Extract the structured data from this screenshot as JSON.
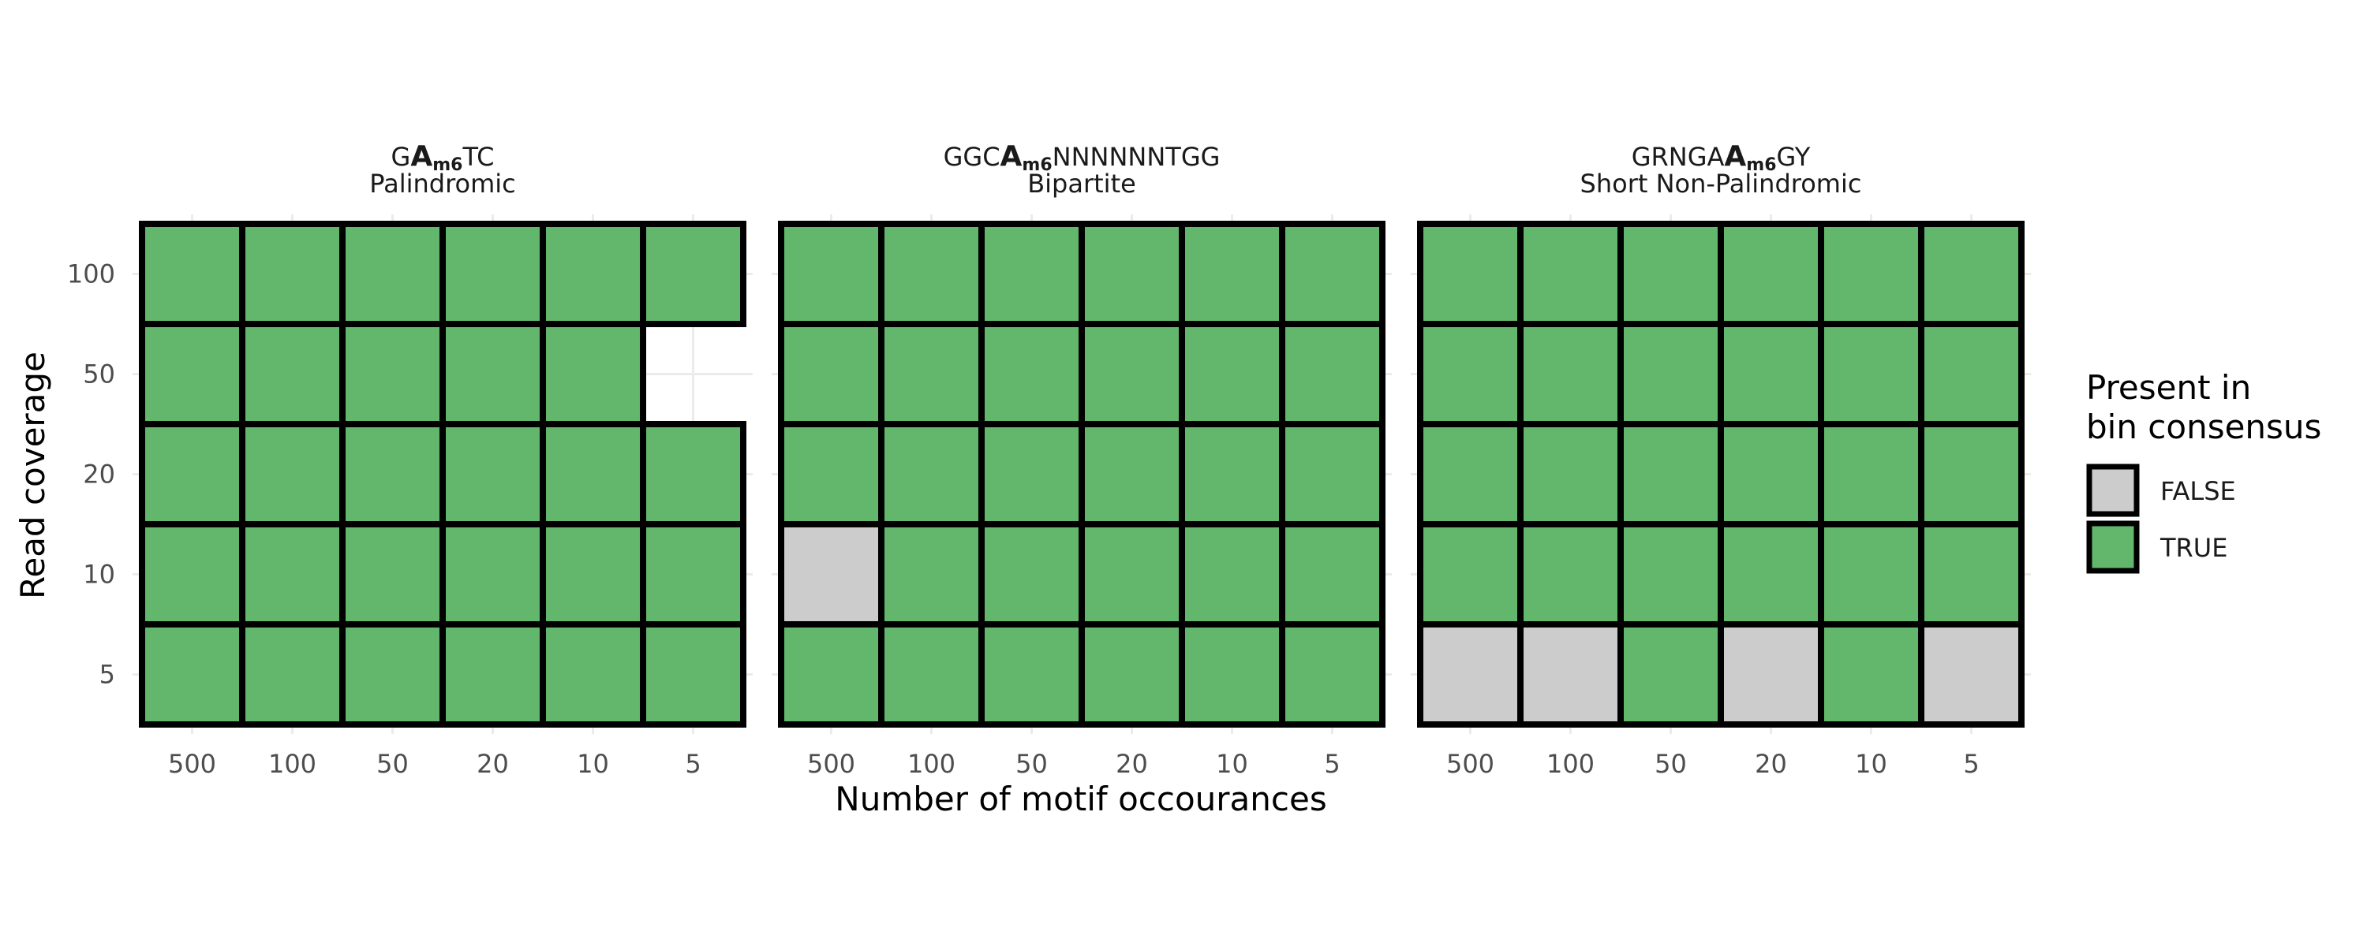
{
  "chart_data": {
    "type": "heatmap",
    "xlabel": "Number of motif occourances",
    "ylabel": "Read coverage",
    "x_categories": [
      "500",
      "100",
      "50",
      "20",
      "10",
      "5"
    ],
    "y_categories": [
      "100",
      "50",
      "20",
      "10",
      "5"
    ],
    "legend": {
      "title_line1": "Present in",
      "title_line2": "bin consensus",
      "placement": "right",
      "entries": [
        {
          "label": "FALSE",
          "color": "#cccccc"
        },
        {
          "label": "TRUE",
          "color": "#63b76c"
        }
      ]
    },
    "colors": {
      "TRUE": "#63b76c",
      "FALSE": "#cccccc",
      "border": "#000000",
      "grid": "#ebebeb"
    },
    "panels": [
      {
        "title_pre": "G",
        "title_base": "A",
        "title_sub": "m6",
        "title_post": "TC",
        "subtitle": "Palindromic",
        "cells": [
          [
            true,
            true,
            true,
            true,
            true,
            true
          ],
          [
            true,
            true,
            true,
            true,
            true,
            null
          ],
          [
            true,
            true,
            true,
            true,
            true,
            true
          ],
          [
            true,
            true,
            true,
            true,
            true,
            true
          ],
          [
            true,
            true,
            true,
            true,
            true,
            true
          ]
        ]
      },
      {
        "title_pre": "GGC",
        "title_base": "A",
        "title_sub": "m6",
        "title_post": "NNNNNNTGG",
        "subtitle": "Bipartite",
        "cells": [
          [
            true,
            true,
            true,
            true,
            true,
            true
          ],
          [
            true,
            true,
            true,
            true,
            true,
            true
          ],
          [
            true,
            true,
            true,
            true,
            true,
            true
          ],
          [
            false,
            true,
            true,
            true,
            true,
            true
          ],
          [
            true,
            true,
            true,
            true,
            true,
            true
          ]
        ]
      },
      {
        "title_pre": "GRNGA",
        "title_base": "A",
        "title_sub": "m6",
        "title_post": "GY",
        "subtitle": "Short Non-Palindromic",
        "cells": [
          [
            true,
            true,
            true,
            true,
            true,
            true
          ],
          [
            true,
            true,
            true,
            true,
            true,
            true
          ],
          [
            true,
            true,
            true,
            true,
            true,
            true
          ],
          [
            true,
            true,
            true,
            true,
            true,
            true
          ],
          [
            false,
            false,
            true,
            false,
            true,
            false
          ]
        ]
      }
    ]
  }
}
